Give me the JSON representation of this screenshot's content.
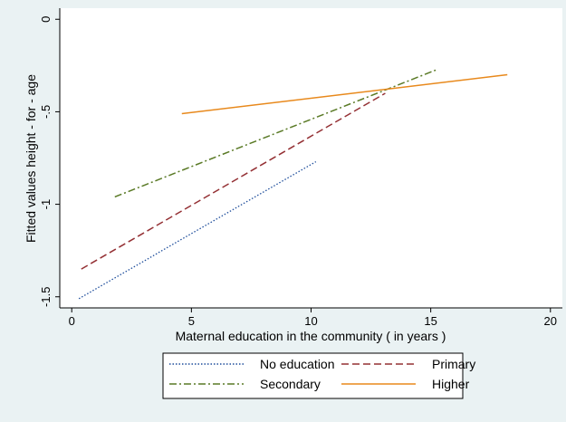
{
  "chart_data": {
    "type": "line",
    "title": "",
    "xlabel": "Maternal education in the community ( in years )",
    "ylabel": "Fitted values height - for - age",
    "xlim": [
      -0.5,
      20.5
    ],
    "ylim": [
      -1.56,
      0.06
    ],
    "x_ticks": [
      0,
      5,
      10,
      15,
      20
    ],
    "x_tick_labels": [
      "0",
      "5",
      "10",
      "15",
      "20"
    ],
    "y_ticks": [
      0,
      -0.5,
      -1,
      -1.5
    ],
    "y_tick_labels": [
      "0",
      "-.5",
      "-1",
      "-1.5"
    ],
    "grid": false,
    "legend_position": "bottom",
    "series": [
      {
        "name": "No education",
        "color": "#1f4e9c",
        "style": "dotted",
        "x": [
          0.3,
          10.2
        ],
        "y": [
          -1.51,
          -0.77
        ]
      },
      {
        "name": "Primary",
        "color": "#943034",
        "style": "dashed",
        "x": [
          0.4,
          13.1
        ],
        "y": [
          -1.35,
          -0.4
        ]
      },
      {
        "name": "Secondary",
        "color": "#5a7a26",
        "style": "dash-dot",
        "x": [
          1.8,
          15.3
        ],
        "y": [
          -0.96,
          -0.27
        ]
      },
      {
        "name": "Higher",
        "color": "#e8891c",
        "style": "solid",
        "x": [
          4.6,
          18.2
        ],
        "y": [
          -0.51,
          -0.3
        ]
      }
    ]
  }
}
